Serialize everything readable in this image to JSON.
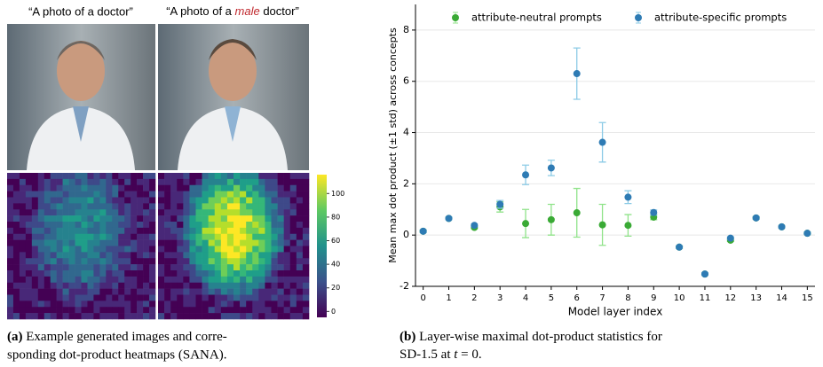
{
  "panel_a": {
    "prompts": [
      {
        "prefix": "“A photo of a doctor”"
      },
      {
        "prefix": "“A photo of a ",
        "emphasis": "male",
        "suffix": " doctor”"
      }
    ],
    "colorbar": {
      "lim": [
        -5,
        116
      ],
      "ticks": [
        0,
        20,
        40,
        60,
        80,
        100
      ]
    },
    "caption": {
      "label": "(a)",
      "lines": [
        "Example generated images and corre-",
        "sponding dot-product heatmaps (SANA)."
      ]
    }
  },
  "chart_data": {
    "type": "scatter",
    "ylabel": "Mean max dot product (±1 std) across concepts",
    "xlabel": "Model layer index",
    "x": [
      0,
      1,
      2,
      3,
      4,
      5,
      6,
      7,
      8,
      9,
      10,
      11,
      12,
      13,
      14,
      15
    ],
    "series": [
      {
        "name": "attribute-neutral prompts",
        "color": "#3aaa35",
        "error_color": "#90e38a",
        "values": [
          0.15,
          0.65,
          0.3,
          1.1,
          0.45,
          0.6,
          0.87,
          0.4,
          0.38,
          0.7,
          -0.47,
          -1.52,
          -0.2,
          0.67,
          0.32,
          0.07
        ],
        "errors": [
          0.05,
          0.05,
          0.05,
          0.2,
          0.55,
          0.6,
          0.95,
          0.8,
          0.42,
          0.1,
          0.05,
          0.05,
          0.05,
          0.05,
          0.05,
          0.05
        ]
      },
      {
        "name": "attribute-specific prompts",
        "color": "#2e7bb4",
        "error_color": "#8ccbe6",
        "values": [
          0.15,
          0.65,
          0.38,
          1.2,
          2.35,
          2.62,
          6.3,
          3.62,
          1.48,
          0.88,
          -0.47,
          -1.52,
          -0.12,
          0.67,
          0.32,
          0.07
        ],
        "errors": [
          0.05,
          0.05,
          0.05,
          0.15,
          0.38,
          0.3,
          1.0,
          0.77,
          0.25,
          0.1,
          0.05,
          0.05,
          0.05,
          0.05,
          0.05,
          0.05
        ]
      }
    ],
    "xlim": [
      -0.3,
      15.3
    ],
    "ylim": [
      -2,
      9
    ],
    "xticks": [
      0,
      1,
      2,
      3,
      4,
      5,
      6,
      7,
      8,
      9,
      10,
      11,
      12,
      13,
      14,
      15
    ],
    "yticks": [
      -2,
      0,
      2,
      4,
      6,
      8
    ],
    "grid": true,
    "legend": "top"
  },
  "panel_b": {
    "caption": {
      "label": "(b)",
      "line1": "Layer-wise maximal dot-product statistics for",
      "line2_prefix": "SD-1.5 at ",
      "variable": "t",
      "line2_suffix": " = 0."
    }
  }
}
